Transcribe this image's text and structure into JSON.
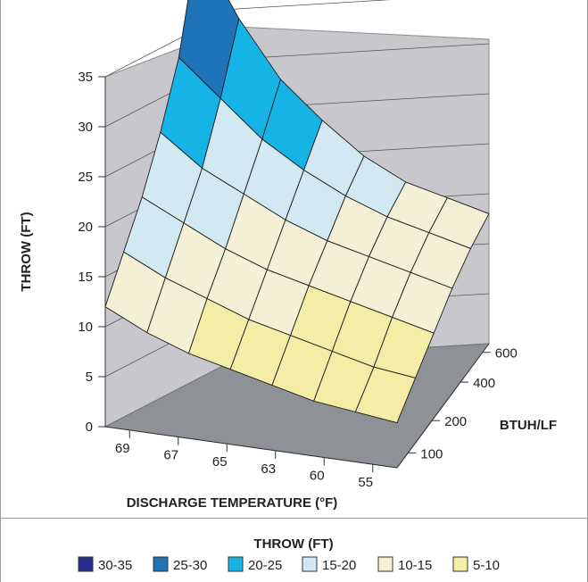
{
  "chart_data": {
    "type": "surface",
    "zlabel": "THROW (FT)",
    "xlabel": "DISCHARGE TEMPERATURE (°F)",
    "ylabel": "BTUH/LF",
    "zlim": [
      0,
      35
    ],
    "z_ticks": [
      "0",
      "5",
      "10",
      "15",
      "20",
      "25",
      "30",
      "35"
    ],
    "x_ticks": [
      "69",
      "67",
      "65",
      "63",
      "60",
      "55"
    ],
    "y_ticks": [
      "100",
      "200",
      "400",
      "600"
    ],
    "grid": true,
    "legend_position": "bottom",
    "legend_title": "THROW (FT)",
    "bands": [
      {
        "name": "30-35",
        "min": 30,
        "max": 35,
        "color": "#2b2c8c"
      },
      {
        "name": "25-30",
        "min": 25,
        "max": 30,
        "color": "#1f74b8"
      },
      {
        "name": "20-25",
        "min": 20,
        "max": 25,
        "color": "#16b4e6"
      },
      {
        "name": "15-20",
        "min": 15,
        "max": 20,
        "color": "#d2e9f3"
      },
      {
        "name": "10-15",
        "min": 10,
        "max": 15,
        "color": "#f3f0d6"
      },
      {
        "name": "5-10",
        "min": 5,
        "max": 10,
        "color": "#f3eda6"
      }
    ],
    "surface": {
      "rows_btuh": [
        100,
        200,
        300,
        400,
        500,
        600
      ],
      "cols_temp": [
        "69",
        "67",
        "65",
        "63",
        "61",
        "60",
        "57",
        "55"
      ],
      "throw": [
        [
          12.0,
          10.0,
          8.5,
          7.5,
          6.5,
          5.5,
          5.0,
          4.5
        ],
        [
          15.0,
          13.0,
          11.5,
          10.0,
          9.0,
          8.0,
          7.0,
          6.5
        ],
        [
          18.0,
          16.0,
          14.0,
          12.5,
          11.5,
          10.5,
          9.5,
          8.5
        ],
        [
          22.0,
          19.0,
          17.0,
          15.0,
          13.5,
          12.5,
          11.5,
          10.5
        ],
        [
          27.0,
          23.5,
          20.0,
          17.5,
          15.5,
          14.0,
          13.0,
          12.0
        ],
        [
          36.0,
          29.0,
          23.5,
          20.0,
          17.0,
          15.0,
          14.0,
          13.0
        ]
      ]
    }
  },
  "colors": {
    "wall": "#c8c8cc",
    "floor": "#8e9296",
    "frame_line": "#9a9a9a",
    "text": "#222222"
  }
}
